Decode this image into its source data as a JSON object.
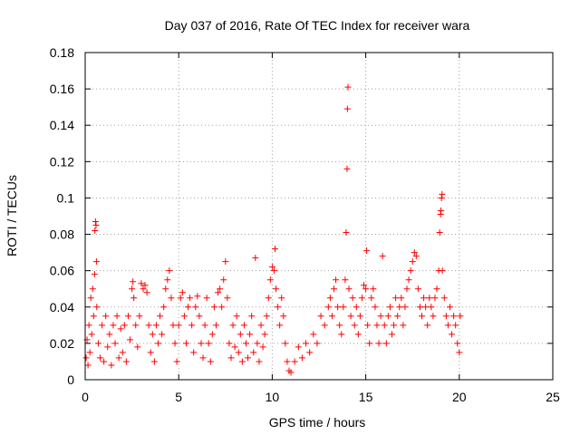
{
  "chart_data": {
    "type": "scatter",
    "title": "Day 037 of 2016, Rate Of TEC Index for receiver wara",
    "xlabel": "GPS time / hours",
    "ylabel": "ROTI / TECUs",
    "xlim": [
      0,
      25
    ],
    "ylim": [
      0,
      0.18
    ],
    "x_ticks": [
      0,
      5,
      10,
      15,
      20,
      25
    ],
    "y_ticks": [
      0,
      0.02,
      0.04,
      0.06,
      0.08,
      0.1,
      0.12,
      0.14,
      0.16,
      0.18
    ],
    "x_tick_labels": [
      "0",
      "5",
      "10",
      "15",
      "20",
      "25"
    ],
    "y_tick_labels": [
      "0",
      "0.02",
      "0.04",
      "0.06",
      "0.08",
      "0.1",
      "0.12",
      "0.14",
      "0.16",
      "0.18"
    ],
    "grid": true,
    "marker": "+",
    "color": "#ff0000",
    "series": [
      {
        "points": [
          [
            0.05,
            0.012
          ],
          [
            0.1,
            0.022
          ],
          [
            0.15,
            0.008
          ],
          [
            0.2,
            0.03
          ],
          [
            0.25,
            0.015
          ],
          [
            0.3,
            0.045
          ],
          [
            0.35,
            0.025
          ],
          [
            0.4,
            0.05
          ],
          [
            0.45,
            0.035
          ],
          [
            0.5,
            0.058
          ],
          [
            0.52,
            0.082
          ],
          [
            0.55,
            0.087
          ],
          [
            0.58,
            0.085
          ],
          [
            0.6,
            0.065
          ],
          [
            0.62,
            0.04
          ],
          [
            0.7,
            0.02
          ],
          [
            0.8,
            0.012
          ],
          [
            0.9,
            0.03
          ],
          [
            1.0,
            0.01
          ],
          [
            1.1,
            0.035
          ],
          [
            1.2,
            0.018
          ],
          [
            1.3,
            0.025
          ],
          [
            1.4,
            0.008
          ],
          [
            1.5,
            0.03
          ],
          [
            1.6,
            0.02
          ],
          [
            1.7,
            0.035
          ],
          [
            1.8,
            0.012
          ],
          [
            1.9,
            0.028
          ],
          [
            2.0,
            0.015
          ],
          [
            2.1,
            0.03
          ],
          [
            2.2,
            0.01
          ],
          [
            2.3,
            0.035
          ],
          [
            2.4,
            0.022
          ],
          [
            2.5,
            0.05
          ],
          [
            2.55,
            0.054
          ],
          [
            2.6,
            0.045
          ],
          [
            2.7,
            0.03
          ],
          [
            2.8,
            0.018
          ],
          [
            2.9,
            0.035
          ],
          [
            3.0,
            0.053
          ],
          [
            3.1,
            0.05
          ],
          [
            3.2,
            0.052
          ],
          [
            3.3,
            0.048
          ],
          [
            3.4,
            0.03
          ],
          [
            3.5,
            0.015
          ],
          [
            3.6,
            0.025
          ],
          [
            3.7,
            0.01
          ],
          [
            3.8,
            0.03
          ],
          [
            3.9,
            0.02
          ],
          [
            4.0,
            0.035
          ],
          [
            4.1,
            0.025
          ],
          [
            4.2,
            0.04
          ],
          [
            4.3,
            0.05
          ],
          [
            4.4,
            0.055
          ],
          [
            4.5,
            0.06
          ],
          [
            4.6,
            0.045
          ],
          [
            4.7,
            0.03
          ],
          [
            4.8,
            0.02
          ],
          [
            4.9,
            0.01
          ],
          [
            5.0,
            0.03
          ],
          [
            5.1,
            0.045
          ],
          [
            5.2,
            0.048
          ],
          [
            5.3,
            0.035
          ],
          [
            5.4,
            0.02
          ],
          [
            5.5,
            0.04
          ],
          [
            5.6,
            0.045
          ],
          [
            5.7,
            0.03
          ],
          [
            5.8,
            0.015
          ],
          [
            5.9,
            0.04
          ],
          [
            6.0,
            0.046
          ],
          [
            6.1,
            0.035
          ],
          [
            6.2,
            0.02
          ],
          [
            6.3,
            0.012
          ],
          [
            6.4,
            0.03
          ],
          [
            6.5,
            0.045
          ],
          [
            6.6,
            0.02
          ],
          [
            6.7,
            0.01
          ],
          [
            6.8,
            0.025
          ],
          [
            6.9,
            0.04
          ],
          [
            7.0,
            0.03
          ],
          [
            7.1,
            0.048
          ],
          [
            7.2,
            0.05
          ],
          [
            7.3,
            0.04
          ],
          [
            7.4,
            0.055
          ],
          [
            7.5,
            0.065
          ],
          [
            7.6,
            0.045
          ],
          [
            7.7,
            0.02
          ],
          [
            7.8,
            0.012
          ],
          [
            7.9,
            0.03
          ],
          [
            8.0,
            0.018
          ],
          [
            8.1,
            0.035
          ],
          [
            8.2,
            0.015
          ],
          [
            8.3,
            0.025
          ],
          [
            8.4,
            0.01
          ],
          [
            8.5,
            0.03
          ],
          [
            8.6,
            0.02
          ],
          [
            8.7,
            0.012
          ],
          [
            8.8,
            0.025
          ],
          [
            8.9,
            0.035
          ],
          [
            9.0,
            0.015
          ],
          [
            9.1,
            0.067
          ],
          [
            9.2,
            0.02
          ],
          [
            9.3,
            0.01
          ],
          [
            9.4,
            0.03
          ],
          [
            9.5,
            0.018
          ],
          [
            9.6,
            0.025
          ],
          [
            9.7,
            0.035
          ],
          [
            9.8,
            0.045
          ],
          [
            9.9,
            0.055
          ],
          [
            10.0,
            0.062
          ],
          [
            10.1,
            0.06
          ],
          [
            10.15,
            0.072
          ],
          [
            10.2,
            0.05
          ],
          [
            10.3,
            0.04
          ],
          [
            10.4,
            0.03
          ],
          [
            10.5,
            0.045
          ],
          [
            10.6,
            0.035
          ],
          [
            10.7,
            0.02
          ],
          [
            10.8,
            0.01
          ],
          [
            10.9,
            0.005
          ],
          [
            11.0,
            0.004
          ],
          [
            11.2,
            0.01
          ],
          [
            11.4,
            0.018
          ],
          [
            11.6,
            0.012
          ],
          [
            11.8,
            0.02
          ],
          [
            12.0,
            0.015
          ],
          [
            12.2,
            0.025
          ],
          [
            12.4,
            0.02
          ],
          [
            12.6,
            0.035
          ],
          [
            12.8,
            0.03
          ],
          [
            13.0,
            0.04
          ],
          [
            13.1,
            0.045
          ],
          [
            13.2,
            0.035
          ],
          [
            13.3,
            0.05
          ],
          [
            13.4,
            0.055
          ],
          [
            13.5,
            0.04
          ],
          [
            13.6,
            0.03
          ],
          [
            13.7,
            0.025
          ],
          [
            13.8,
            0.04
          ],
          [
            13.9,
            0.055
          ],
          [
            13.95,
            0.081
          ],
          [
            14.0,
            0.116
          ],
          [
            14.02,
            0.149
          ],
          [
            14.05,
            0.161
          ],
          [
            14.1,
            0.05
          ],
          [
            14.2,
            0.035
          ],
          [
            14.3,
            0.045
          ],
          [
            14.4,
            0.03
          ],
          [
            14.5,
            0.04
          ],
          [
            14.6,
            0.025
          ],
          [
            14.7,
            0.035
          ],
          [
            14.8,
            0.045
          ],
          [
            14.9,
            0.052
          ],
          [
            15.0,
            0.05
          ],
          [
            15.05,
            0.071
          ],
          [
            15.1,
            0.03
          ],
          [
            15.2,
            0.02
          ],
          [
            15.3,
            0.045
          ],
          [
            15.4,
            0.05
          ],
          [
            15.5,
            0.04
          ],
          [
            15.6,
            0.03
          ],
          [
            15.7,
            0.02
          ],
          [
            15.8,
            0.035
          ],
          [
            15.9,
            0.068
          ],
          [
            16.0,
            0.03
          ],
          [
            16.1,
            0.02
          ],
          [
            16.2,
            0.035
          ],
          [
            16.3,
            0.04
          ],
          [
            16.4,
            0.025
          ],
          [
            16.5,
            0.03
          ],
          [
            16.6,
            0.045
          ],
          [
            16.7,
            0.035
          ],
          [
            16.8,
            0.04
          ],
          [
            16.9,
            0.045
          ],
          [
            17.0,
            0.03
          ],
          [
            17.1,
            0.04
          ],
          [
            17.2,
            0.05
          ],
          [
            17.3,
            0.055
          ],
          [
            17.4,
            0.06
          ],
          [
            17.5,
            0.065
          ],
          [
            17.6,
            0.07
          ],
          [
            17.7,
            0.068
          ],
          [
            17.8,
            0.05
          ],
          [
            17.9,
            0.04
          ],
          [
            18.0,
            0.035
          ],
          [
            18.1,
            0.045
          ],
          [
            18.2,
            0.04
          ],
          [
            18.3,
            0.03
          ],
          [
            18.4,
            0.045
          ],
          [
            18.5,
            0.04
          ],
          [
            18.6,
            0.035
          ],
          [
            18.7,
            0.045
          ],
          [
            18.8,
            0.05
          ],
          [
            18.9,
            0.06
          ],
          [
            18.95,
            0.081
          ],
          [
            19.0,
            0.091
          ],
          [
            19.02,
            0.093
          ],
          [
            19.05,
            0.1
          ],
          [
            19.08,
            0.102
          ],
          [
            19.1,
            0.06
          ],
          [
            19.2,
            0.045
          ],
          [
            19.3,
            0.035
          ],
          [
            19.4,
            0.03
          ],
          [
            19.5,
            0.04
          ],
          [
            19.6,
            0.025
          ],
          [
            19.7,
            0.035
          ],
          [
            19.8,
            0.03
          ],
          [
            19.9,
            0.02
          ],
          [
            20.0,
            0.015
          ],
          [
            20.05,
            0.035
          ]
        ]
      }
    ]
  }
}
